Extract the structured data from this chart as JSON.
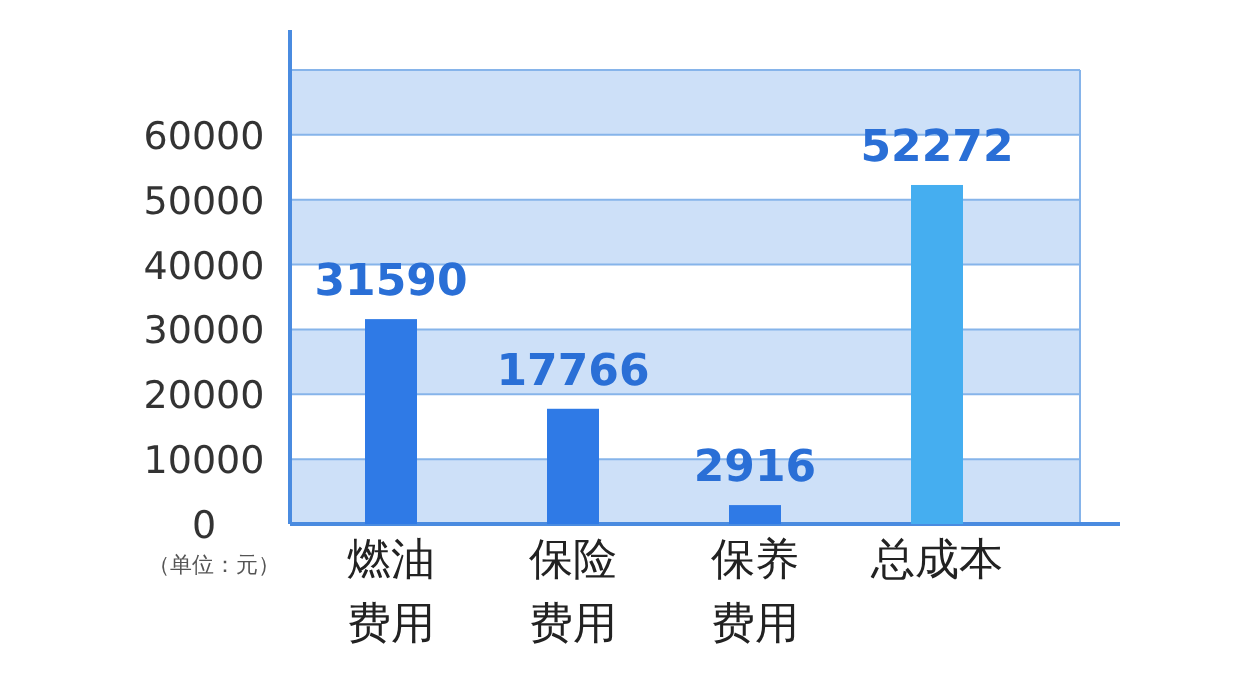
{
  "chart_data": {
    "type": "bar",
    "categories": [
      "燃油费用",
      "保险费用",
      "保养费用",
      "总成本"
    ],
    "values": [
      31590,
      17766,
      2916,
      52272
    ],
    "colors": [
      "#2f7ae6",
      "#2f7ae6",
      "#2f7ae6",
      "#45aef0"
    ],
    "ylim": [
      0,
      70000
    ],
    "yticks": [
      0,
      10000,
      20000,
      30000,
      40000,
      50000,
      60000
    ],
    "grid": "y",
    "data_labels": true,
    "bands": [
      {
        "axis": "y",
        "from": 0,
        "to": 10000,
        "color": "#cde0f8"
      },
      {
        "axis": "y",
        "from": 20000,
        "to": 30000,
        "color": "#cde0f8"
      },
      {
        "axis": "y",
        "from": 40000,
        "to": 50000,
        "color": "#cde0f8"
      },
      {
        "axis": "y",
        "from": 60000,
        "to": 70000,
        "color": "#cde0f8"
      }
    ],
    "annotations": [
      "（单位：元）"
    ]
  }
}
